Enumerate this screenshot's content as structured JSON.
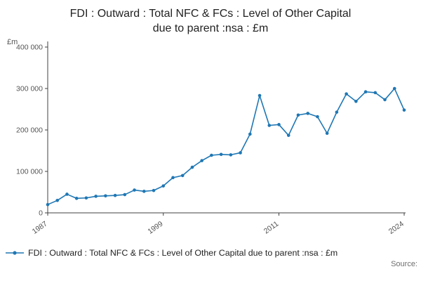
{
  "title": {
    "line1": "FDI : Outward : Total NFC & FCs : Level of Other Capital",
    "line2": "due to parent :nsa : £m"
  },
  "legend": {
    "label": "FDI : Outward : Total NFC & FCs : Level of Other Capital due to parent :nsa : £m"
  },
  "footer": {
    "source": "Source:"
  },
  "colors": {
    "line": "#1f77b4",
    "axis": "#414042",
    "tick_text": "#555555",
    "title_text": "#222222",
    "source_text": "#6e6e6e"
  },
  "chart_data": {
    "type": "line",
    "title": "FDI : Outward : Total NFC & FCs : Level of Other Capital due to parent :nsa : £m",
    "xlabel": "",
    "ylabel": "£m",
    "xlim": [
      1987,
      2024
    ],
    "ylim": [
      0,
      400000
    ],
    "yticks": [
      0,
      100000,
      200000,
      300000,
      400000
    ],
    "ytick_labels": [
      "0",
      "100 000",
      "200 000",
      "300 000",
      "400 000"
    ],
    "xticks": [
      1987,
      1999,
      2011,
      2024
    ],
    "xtick_labels": [
      "1987",
      "1999",
      "2011",
      "2024"
    ],
    "grid": false,
    "legend_position": "bottom-left",
    "marker": "circle",
    "series_name": "FDI : Outward : Total NFC & FCs : Level of Other Capital due to parent :nsa : £m",
    "x": [
      1987,
      1988,
      1989,
      1990,
      1991,
      1992,
      1993,
      1994,
      1995,
      1996,
      1997,
      1998,
      1999,
      2000,
      2001,
      2002,
      2003,
      2004,
      2005,
      2006,
      2007,
      2008,
      2009,
      2010,
      2011,
      2012,
      2013,
      2014,
      2015,
      2016,
      2017,
      2018,
      2019,
      2020,
      2021,
      2022,
      2023,
      2024
    ],
    "values": [
      20000,
      30000,
      45000,
      35000,
      36000,
      40000,
      41000,
      42000,
      44000,
      55000,
      52000,
      54000,
      65000,
      85000,
      90000,
      110000,
      126000,
      139000,
      141000,
      140000,
      145000,
      190000,
      283000,
      211000,
      213000,
      187000,
      236000,
      240000,
      232000,
      192000,
      243000,
      287000,
      269000,
      292000,
      290000,
      273000,
      300000,
      248000
    ]
  }
}
